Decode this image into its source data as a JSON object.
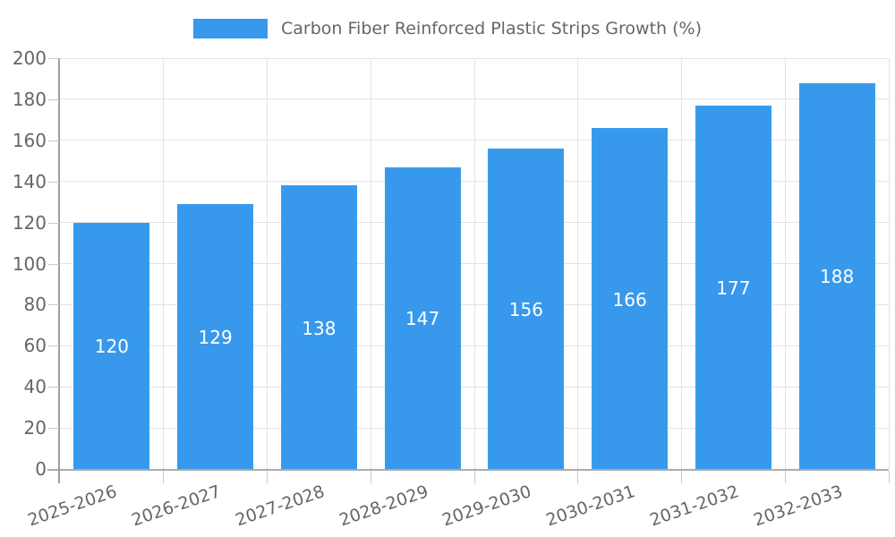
{
  "chart_data": {
    "type": "bar",
    "title": "Carbon Fiber Reinforced Plastic Strips Growth (%)",
    "legend": {
      "position": "top",
      "label": "Carbon Fiber Reinforced Plastic Strips Growth (%)"
    },
    "categories": [
      "2025-2026",
      "2026-2027",
      "2027-2028",
      "2028-2029",
      "2029-2030",
      "2030-2031",
      "2031-2032",
      "2032-2033"
    ],
    "values": [
      120,
      129,
      138,
      147,
      156,
      166,
      177,
      188
    ],
    "value_labels_shown": true,
    "xlabel": "",
    "ylabel": "",
    "ylim": [
      0,
      200
    ],
    "yticks": [
      0,
      20,
      40,
      60,
      80,
      100,
      120,
      140,
      160,
      180,
      200
    ],
    "grid": true,
    "x_label_rotation_deg": -19,
    "colors": {
      "bar": "#3899EC",
      "bar_border": "rgba(54,162,235,0.45)",
      "grid": "#E3E3E3",
      "axis": "#9E9E9E",
      "tick": "#C9C9C9",
      "text": "#666666",
      "value_label": "#FFFFFF",
      "background": "#FFFFFF"
    }
  }
}
